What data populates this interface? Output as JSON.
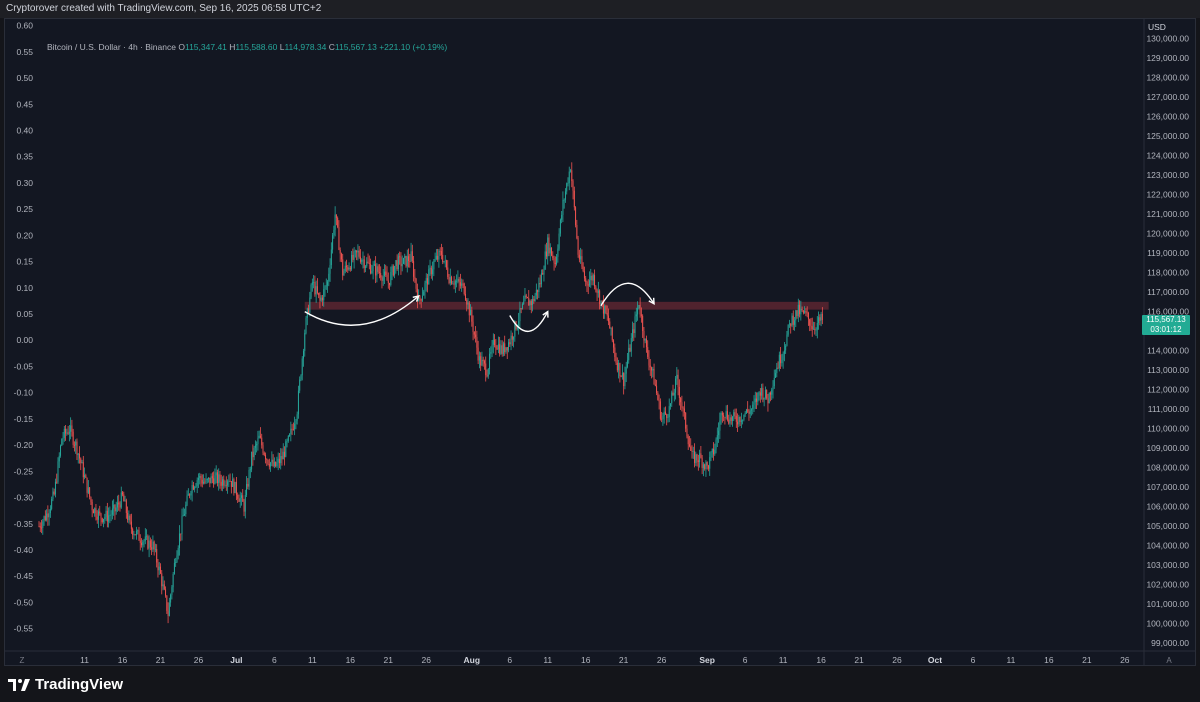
{
  "header": {
    "caption": "Cryptorover created with TradingView.com, Sep 16, 2025 06:58 UTC+2"
  },
  "legend": {
    "symbol": "Bitcoin / U.S. Dollar · 4h · Binance",
    "open_label": "O",
    "open": "115,347.41",
    "high_label": "H",
    "high": "115,588.60",
    "low_label": "L",
    "low": "114,978.34",
    "close_label": "C",
    "close": "115,567.13",
    "change": "+221.10 (+0.19%)"
  },
  "price_tag": {
    "price": "115,567.13",
    "countdown": "03:01:12"
  },
  "currency": "USD",
  "corner_left": "Z",
  "corner_right": "A",
  "brand": "TradingView",
  "colors": {
    "up": "#26a69a",
    "down": "#ef5350",
    "zone": "#5c2630",
    "background": "#131722",
    "price_tag": "#22ab94"
  },
  "chart_data": {
    "type": "candlestick",
    "symbol": "BTCUSD",
    "timeframe": "4h",
    "right_axis": {
      "unit": "USD",
      "range": [
        98800,
        130800
      ],
      "ticks": [
        "99,000.00",
        "100,000.00",
        "101,000.00",
        "102,000.00",
        "103,000.00",
        "104,000.00",
        "105,000.00",
        "106,000.00",
        "107,000.00",
        "108,000.00",
        "109,000.00",
        "110,000.00",
        "111,000.00",
        "112,000.00",
        "113,000.00",
        "114,000.00",
        "116,000.00",
        "117,000.00",
        "118,000.00",
        "119,000.00",
        "120,000.00",
        "121,000.00",
        "122,000.00",
        "123,000.00",
        "124,000.00",
        "125,000.00",
        "126,000.00",
        "127,000.00",
        "128,000.00",
        "129,000.00",
        "130,000.00"
      ]
    },
    "left_axis": {
      "range": [
        -0.585,
        0.605
      ],
      "ticks": [
        "0.60",
        "0.55",
        "0.50",
        "0.45",
        "0.40",
        "0.35",
        "0.30",
        "0.25",
        "0.20",
        "0.15",
        "0.10",
        "0.05",
        "0.00",
        "-0.05",
        "-0.10",
        "-0.15",
        "-0.20",
        "-0.25",
        "-0.30",
        "-0.35",
        "-0.40",
        "-0.45",
        "-0.50",
        "-0.55"
      ]
    },
    "x_axis": {
      "range": [
        "2025-06-05",
        "2025-10-28"
      ],
      "ticks": [
        {
          "date": "2025-06-11",
          "label": "11"
        },
        {
          "date": "2025-06-16",
          "label": "16"
        },
        {
          "date": "2025-06-21",
          "label": "21"
        },
        {
          "date": "2025-06-26",
          "label": "26"
        },
        {
          "date": "2025-07-01",
          "label": "Jul"
        },
        {
          "date": "2025-07-06",
          "label": "6"
        },
        {
          "date": "2025-07-11",
          "label": "11"
        },
        {
          "date": "2025-07-16",
          "label": "16"
        },
        {
          "date": "2025-07-21",
          "label": "21"
        },
        {
          "date": "2025-07-26",
          "label": "26"
        },
        {
          "date": "2025-08-01",
          "label": "Aug"
        },
        {
          "date": "2025-08-06",
          "label": "6"
        },
        {
          "date": "2025-08-11",
          "label": "11"
        },
        {
          "date": "2025-08-16",
          "label": "16"
        },
        {
          "date": "2025-08-21",
          "label": "21"
        },
        {
          "date": "2025-08-26",
          "label": "26"
        },
        {
          "date": "2025-09-01",
          "label": "Sep"
        },
        {
          "date": "2025-09-06",
          "label": "6"
        },
        {
          "date": "2025-09-11",
          "label": "11"
        },
        {
          "date": "2025-09-16",
          "label": "16"
        },
        {
          "date": "2025-09-21",
          "label": "21"
        },
        {
          "date": "2025-09-26",
          "label": "26"
        },
        {
          "date": "2025-10-01",
          "label": "Oct"
        },
        {
          "date": "2025-10-06",
          "label": "6"
        },
        {
          "date": "2025-10-11",
          "label": "11"
        },
        {
          "date": "2025-10-16",
          "label": "16"
        },
        {
          "date": "2025-10-21",
          "label": "21"
        },
        {
          "date": "2025-10-26",
          "label": "26"
        }
      ]
    },
    "price_path": [
      [
        "2025-06-05",
        105000
      ],
      [
        "2025-06-06",
        105600
      ],
      [
        "2025-06-07",
        106600
      ],
      [
        "2025-06-08",
        109500
      ],
      [
        "2025-06-09",
        110000
      ],
      [
        "2025-06-10",
        109000
      ],
      [
        "2025-06-11",
        107500
      ],
      [
        "2025-06-12",
        106000
      ],
      [
        "2025-06-13",
        105500
      ],
      [
        "2025-06-14",
        105500
      ],
      [
        "2025-06-15",
        105800
      ],
      [
        "2025-06-16",
        106500
      ],
      [
        "2025-06-17",
        105000
      ],
      [
        "2025-06-18",
        104500
      ],
      [
        "2025-06-19",
        104200
      ],
      [
        "2025-06-20",
        104000
      ],
      [
        "2025-06-21",
        102500
      ],
      [
        "2025-06-22",
        100500
      ],
      [
        "2025-06-23",
        103500
      ],
      [
        "2025-06-24",
        105500
      ],
      [
        "2025-06-25",
        107000
      ],
      [
        "2025-06-26",
        107500
      ],
      [
        "2025-06-27",
        107200
      ],
      [
        "2025-06-28",
        107500
      ],
      [
        "2025-06-29",
        107300
      ],
      [
        "2025-06-30",
        107500
      ],
      [
        "2025-07-01",
        106800
      ],
      [
        "2025-07-02",
        106000
      ],
      [
        "2025-07-03",
        108500
      ],
      [
        "2025-07-04",
        109500
      ],
      [
        "2025-07-05",
        108500
      ],
      [
        "2025-07-06",
        108000
      ],
      [
        "2025-07-07",
        108500
      ],
      [
        "2025-07-08",
        109500
      ],
      [
        "2025-07-09",
        111000
      ],
      [
        "2025-07-10",
        115000
      ],
      [
        "2025-07-11",
        117500
      ],
      [
        "2025-07-12",
        116500
      ],
      [
        "2025-07-13",
        117500
      ],
      [
        "2025-07-14",
        121000
      ],
      [
        "2025-07-15",
        118000
      ],
      [
        "2025-07-16",
        118500
      ],
      [
        "2025-07-17",
        119000
      ],
      [
        "2025-07-18",
        118500
      ],
      [
        "2025-07-19",
        118200
      ],
      [
        "2025-07-20",
        118000
      ],
      [
        "2025-07-21",
        117500
      ],
      [
        "2025-07-22",
        118500
      ],
      [
        "2025-07-23",
        118500
      ],
      [
        "2025-07-24",
        118800
      ],
      [
        "2025-07-25",
        116500
      ],
      [
        "2025-07-26",
        117500
      ],
      [
        "2025-07-27",
        118500
      ],
      [
        "2025-07-28",
        119000
      ],
      [
        "2025-07-29",
        117800
      ],
      [
        "2025-07-30",
        117500
      ],
      [
        "2025-07-31",
        117200
      ],
      [
        "2025-08-01",
        115500
      ],
      [
        "2025-08-02",
        113500
      ],
      [
        "2025-08-03",
        113000
      ],
      [
        "2025-08-04",
        114500
      ],
      [
        "2025-08-05",
        114000
      ],
      [
        "2025-08-06",
        114500
      ],
      [
        "2025-08-07",
        115500
      ],
      [
        "2025-08-08",
        116500
      ],
      [
        "2025-08-09",
        116500
      ],
      [
        "2025-08-10",
        117500
      ],
      [
        "2025-08-11",
        119500
      ],
      [
        "2025-08-12",
        118500
      ],
      [
        "2025-08-13",
        121500
      ],
      [
        "2025-08-14",
        123500
      ],
      [
        "2025-08-15",
        119000
      ],
      [
        "2025-08-16",
        117500
      ],
      [
        "2025-08-17",
        117800
      ],
      [
        "2025-08-18",
        116500
      ],
      [
        "2025-08-19",
        115500
      ],
      [
        "2025-08-20",
        113500
      ],
      [
        "2025-08-21",
        112500
      ],
      [
        "2025-08-22",
        114500
      ],
      [
        "2025-08-23",
        116500
      ],
      [
        "2025-08-24",
        114000
      ],
      [
        "2025-08-25",
        112500
      ],
      [
        "2025-08-26",
        110500
      ],
      [
        "2025-08-27",
        111000
      ],
      [
        "2025-08-28",
        112500
      ],
      [
        "2025-08-29",
        110500
      ],
      [
        "2025-08-30",
        108500
      ],
      [
        "2025-08-31",
        108500
      ],
      [
        "2025-09-01",
        108000
      ],
      [
        "2025-09-02",
        109000
      ],
      [
        "2025-09-03",
        111000
      ],
      [
        "2025-09-04",
        110500
      ],
      [
        "2025-09-05",
        110500
      ],
      [
        "2025-09-06",
        110800
      ],
      [
        "2025-09-07",
        111000
      ],
      [
        "2025-09-08",
        112000
      ],
      [
        "2025-09-09",
        111500
      ],
      [
        "2025-09-10",
        113000
      ],
      [
        "2025-09-11",
        114000
      ],
      [
        "2025-09-12",
        115500
      ],
      [
        "2025-09-13",
        116000
      ],
      [
        "2025-09-14",
        115800
      ],
      [
        "2025-09-15",
        115200
      ],
      [
        "2025-09-16",
        115567
      ]
    ],
    "resistance_zone": {
      "from": "2025-07-10",
      "to": "2025-09-17",
      "low": 116100,
      "high": 116500
    },
    "annotations": [
      {
        "type": "arrow",
        "shape": "smile",
        "from": [
          "2025-07-10",
          116000
        ],
        "to": [
          "2025-07-25",
          116800
        ]
      },
      {
        "type": "arrow",
        "shape": "smile",
        "from": [
          "2025-08-06",
          115800
        ],
        "to": [
          "2025-08-11",
          116000
        ]
      },
      {
        "type": "arrow",
        "shape": "frown",
        "from": [
          "2025-08-18",
          116300
        ],
        "to": [
          "2025-08-25",
          116400
        ]
      }
    ],
    "last": {
      "price": 115567.13,
      "time": "2025-09-16"
    }
  }
}
